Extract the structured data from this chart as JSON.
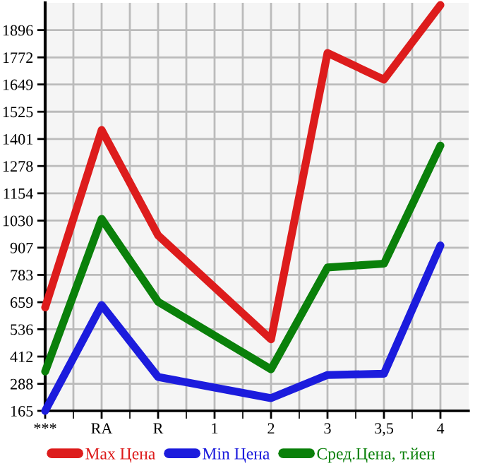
{
  "chart_data": {
    "type": "line",
    "categories": [
      "***",
      "RA",
      "R",
      "1",
      "2",
      "3",
      "3,5",
      "4"
    ],
    "series": [
      {
        "name": "Max Цена",
        "color": "#dd1c1c",
        "values": [
          635,
          1442,
          963,
          null,
          490,
          1792,
          1671,
          2010
        ]
      },
      {
        "name": "Min Цена",
        "color": "#1c1cdd",
        "values": [
          165,
          646,
          319,
          null,
          223,
          328,
          334,
          917
        ]
      },
      {
        "name": "Сред.Цена, т.йен",
        "color": "#0a800a",
        "values": [
          344,
          1038,
          661,
          null,
          354,
          817,
          834,
          1371
        ]
      }
    ],
    "ylim": [
      165,
      2020
    ],
    "yticks": [
      165,
      288,
      412,
      536,
      659,
      783,
      907,
      1030,
      1154,
      1278,
      1401,
      1525,
      1649,
      1772,
      1896
    ],
    "grid": true,
    "legend": "bottom",
    "marker": "none",
    "line_style": "solid"
  }
}
